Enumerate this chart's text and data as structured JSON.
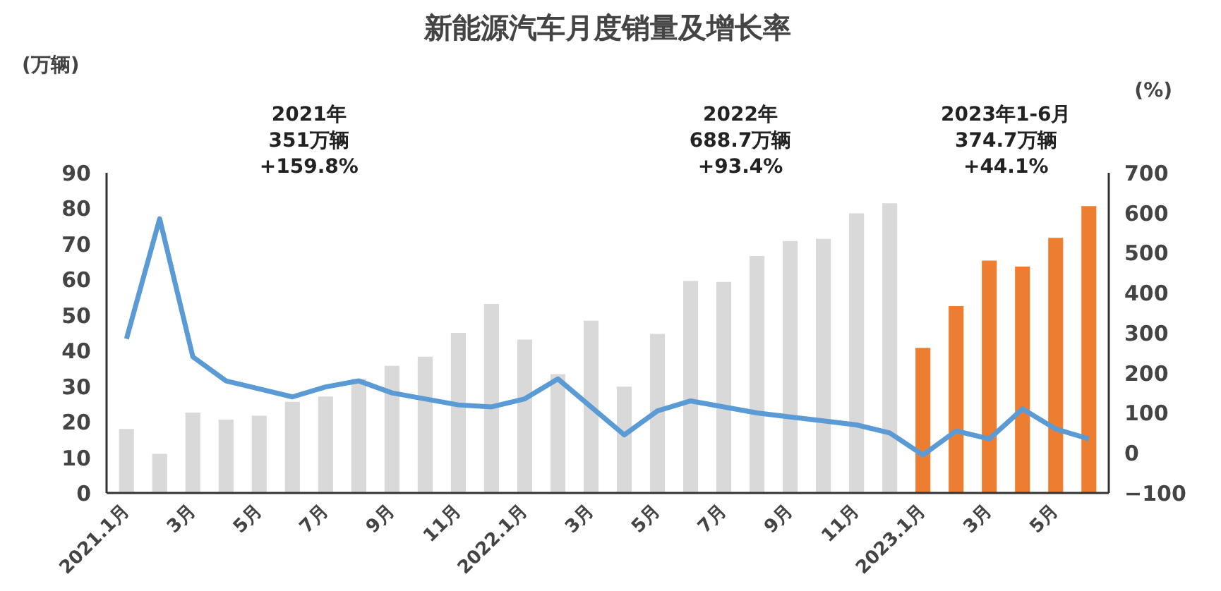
{
  "chart_data": {
    "type": "bar",
    "title": "新能源汽车月度销量及增长率",
    "ylabel": "(万辆)",
    "y2label": "(%)",
    "categories": [
      "2021.1月",
      null,
      "3月",
      null,
      "5月",
      null,
      "7月",
      null,
      "9月",
      null,
      "11月",
      null,
      "2022.1月",
      null,
      "3月",
      null,
      "5月",
      null,
      "7月",
      null,
      "9月",
      null,
      "11月",
      null,
      "2023.1月",
      null,
      "3月",
      null,
      "5月",
      null
    ],
    "series": [
      {
        "values": [
          18.0,
          11.0,
          22.6,
          20.6,
          21.7,
          25.6,
          27.1,
          32.1,
          35.7,
          38.3,
          45.0,
          53.1,
          43.1,
          33.4,
          48.4,
          29.9,
          44.7,
          59.6,
          59.3,
          66.6,
          70.8,
          71.4,
          78.6,
          81.4,
          40.8,
          52.5,
          65.3,
          63.6,
          71.7,
          80.6
        ],
        "colors": [
          "#d9d9d9",
          "#d9d9d9",
          "#d9d9d9",
          "#d9d9d9",
          "#d9d9d9",
          "#d9d9d9",
          "#d9d9d9",
          "#d9d9d9",
          "#d9d9d9",
          "#d9d9d9",
          "#d9d9d9",
          "#d9d9d9",
          "#d9d9d9",
          "#d9d9d9",
          "#d9d9d9",
          "#d9d9d9",
          "#d9d9d9",
          "#d9d9d9",
          "#d9d9d9",
          "#d9d9d9",
          "#d9d9d9",
          "#d9d9d9",
          "#d9d9d9",
          "#d9d9d9",
          "#ed7d31",
          "#ed7d31",
          "#ed7d31",
          "#ed7d31",
          "#ed7d31",
          "#ed7d31"
        ]
      },
      {
        "type": "line",
        "axis": "y2",
        "color": "#5b9bd5",
        "values": [
          285,
          585,
          240,
          180,
          160,
          140,
          165,
          180,
          150,
          135,
          120,
          115,
          135,
          185,
          115,
          45,
          105,
          130,
          115,
          100,
          90,
          80,
          70,
          50,
          -5,
          55,
          35,
          110,
          60,
          35
        ]
      }
    ],
    "ylim": [
      0,
      90
    ],
    "yticks": [
      0,
      10,
      20,
      30,
      40,
      50,
      60,
      70,
      80,
      90
    ],
    "y2lim": [
      -100,
      700
    ],
    "y2ticks": [
      -100,
      0,
      100,
      200,
      300,
      400,
      500,
      600,
      700
    ],
    "annotations": [
      "2021年\n351万辆\n+159.8%",
      "2022年\n688.7万辆\n+93.4%",
      "2023年1-6月\n374.7万辆\n+44.1%"
    ],
    "grid": false,
    "marker": "none",
    "line_style": "solid"
  }
}
